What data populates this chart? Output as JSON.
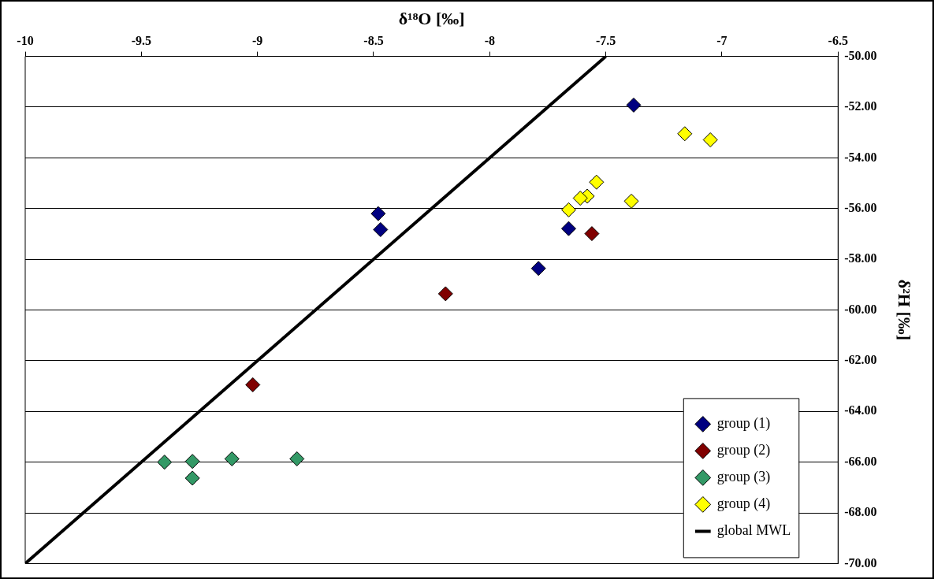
{
  "chart_data": {
    "type": "scatter",
    "xlabel": "δ¹⁸O [‰]",
    "ylabel": "δ²H [‰]",
    "series": [
      {
        "name": "group (1)",
        "color": "#000080",
        "x": [
          -7.38,
          -8.48,
          -8.47,
          -7.66,
          -7.79
        ],
        "values": [
          -51.92,
          -56.2,
          -56.83,
          -56.79,
          -58.36
        ]
      },
      {
        "name": "group (2)",
        "color": "#800000",
        "x": [
          -7.56,
          -8.19,
          -9.02
        ],
        "values": [
          -56.99,
          -59.36,
          -62.95
        ]
      },
      {
        "name": "group (3)",
        "color": "#339966",
        "x": [
          -9.4,
          -9.28,
          -9.28,
          -9.11,
          -8.83
        ],
        "values": [
          -66.0,
          -65.97,
          -66.63,
          -65.87,
          -65.87
        ]
      },
      {
        "name": "group (4)",
        "color": "#ffff00",
        "x": [
          -7.16,
          -7.05,
          -7.54,
          -7.58,
          -7.61,
          -7.66,
          -7.39
        ],
        "values": [
          -53.05,
          -53.29,
          -54.96,
          -55.51,
          -55.59,
          -56.05,
          -55.71
        ]
      },
      {
        "name": "global MWL",
        "type": "line",
        "marker": "none",
        "color": "#000000",
        "x": [
          -10,
          -7.5
        ],
        "values": [
          -70,
          -50
        ]
      }
    ],
    "marker": "diamond",
    "xlim": [
      -10,
      -6.5
    ],
    "xticks": [
      -10,
      -9.5,
      -9,
      -8.5,
      -8,
      -7.5,
      -7,
      -6.5
    ],
    "ylim": [
      -70,
      -50
    ],
    "yticks": [
      {
        "value": -70,
        "label": "-70.00"
      },
      {
        "value": -68,
        "label": "-68.00"
      },
      {
        "value": -66,
        "label": "-66.00"
      },
      {
        "value": -64,
        "label": "-64.00"
      },
      {
        "value": -62,
        "label": "-62.00"
      },
      {
        "value": -60,
        "label": "-60.00"
      },
      {
        "value": -58,
        "label": "-58.00"
      },
      {
        "value": -56,
        "label": "-56.00"
      },
      {
        "value": -54,
        "label": "-54.00"
      },
      {
        "value": -52,
        "label": "-52.00"
      },
      {
        "value": -50,
        "label": "-50.00"
      }
    ],
    "grid": "y",
    "legend": "bottom right"
  }
}
